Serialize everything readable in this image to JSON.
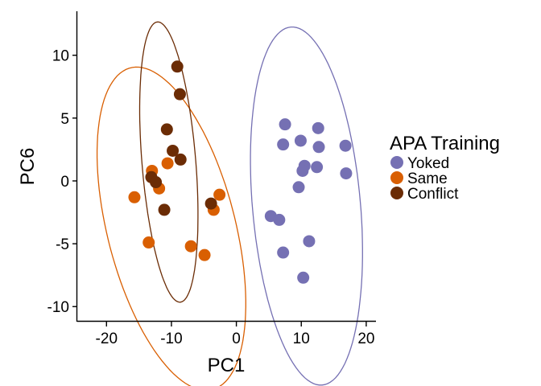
{
  "chart_data": {
    "type": "scatter",
    "xlabel": "PC1",
    "ylabel": "PC6",
    "xlim": [
      -24.5,
      21.5
    ],
    "ylim": [
      -11.2,
      13.5
    ],
    "xticks": [
      -20,
      -10,
      0,
      10,
      20
    ],
    "yticks": [
      -10,
      -5,
      0,
      5,
      10
    ],
    "grid": false,
    "legend": {
      "title": "APA Training",
      "position": "right"
    },
    "series": [
      {
        "name": "Yoked",
        "color": "#7570b3",
        "points": [
          {
            "x": 7.5,
            "y": 4.5
          },
          {
            "x": 12.6,
            "y": 4.2
          },
          {
            "x": 9.9,
            "y": 3.2
          },
          {
            "x": 7.2,
            "y": 2.9
          },
          {
            "x": 12.7,
            "y": 2.7
          },
          {
            "x": 16.8,
            "y": 2.8
          },
          {
            "x": 10.5,
            "y": 1.2
          },
          {
            "x": 12.4,
            "y": 1.1
          },
          {
            "x": 10.2,
            "y": 0.8
          },
          {
            "x": 16.9,
            "y": 0.6
          },
          {
            "x": 9.6,
            "y": -0.5
          },
          {
            "x": 5.3,
            "y": -2.8
          },
          {
            "x": 6.6,
            "y": -3.1
          },
          {
            "x": 11.2,
            "y": -4.8
          },
          {
            "x": 7.2,
            "y": -5.7
          },
          {
            "x": 10.3,
            "y": -7.7
          }
        ],
        "ellipse": {
          "center": [
            10.8,
            -2.0
          ],
          "semi_axes": [
            14.5,
            8.2
          ],
          "angle_deg": -77
        }
      },
      {
        "name": "Same",
        "color": "#d95f02",
        "points": [
          {
            "x": -13.0,
            "y": 0.8
          },
          {
            "x": -10.6,
            "y": 1.4
          },
          {
            "x": -11.9,
            "y": -0.6
          },
          {
            "x": -15.7,
            "y": -1.3
          },
          {
            "x": -3.5,
            "y": -2.3
          },
          {
            "x": -2.6,
            "y": -1.1
          },
          {
            "x": -13.5,
            "y": -4.9
          },
          {
            "x": -7.0,
            "y": -5.2
          },
          {
            "x": -4.9,
            "y": -5.9
          }
        ],
        "ellipse": {
          "center": [
            -10.0,
            -3.8
          ],
          "semi_axes": [
            14.8,
            8.8
          ],
          "angle_deg": -52
        }
      },
      {
        "name": "Conflict",
        "color": "#6b2c05",
        "points": [
          {
            "x": -9.1,
            "y": 9.1
          },
          {
            "x": -8.7,
            "y": 6.9
          },
          {
            "x": -10.7,
            "y": 4.1
          },
          {
            "x": -9.8,
            "y": 2.4
          },
          {
            "x": -8.6,
            "y": 1.7
          },
          {
            "x": -13.1,
            "y": 0.3
          },
          {
            "x": -12.4,
            "y": -0.1
          },
          {
            "x": -3.9,
            "y": -1.8
          },
          {
            "x": -11.1,
            "y": -2.3
          }
        ],
        "ellipse": {
          "center": [
            -10.4,
            1.5
          ],
          "semi_axes": [
            11.3,
            4.1
          ],
          "angle_deg": -80
        }
      }
    ]
  }
}
